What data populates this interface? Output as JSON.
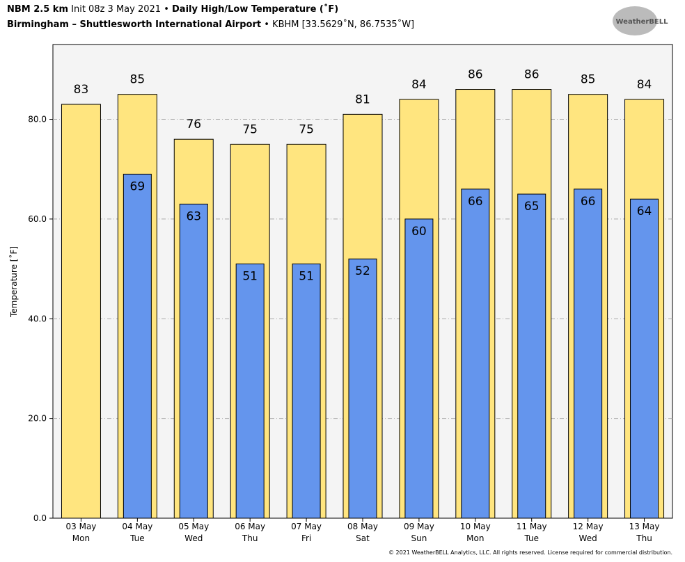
{
  "chart_data": {
    "type": "bar",
    "title": {
      "model": "NBM 2.5 km",
      "init": "Init 08z 3 May 2021",
      "separator": "•",
      "name": "Daily High/Low Temperature (˚F)"
    },
    "subtitle": {
      "station": "Birmingham – Shuttlesworth International Airport",
      "code": "KBHM [33.5629˚N, 86.7535˚W]"
    },
    "logo": "WeatherBELL",
    "copyright": "© 2021 WeatherBELL Analytics, LLC. All rights reserved. License required for commercial distribution.",
    "y_label": "Temperature [˚F]",
    "categories": [
      [
        "03 May",
        "Mon"
      ],
      [
        "04 May",
        "Tue"
      ],
      [
        "05 May",
        "Wed"
      ],
      [
        "06 May",
        "Thu"
      ],
      [
        "07 May",
        "Fri"
      ],
      [
        "08 May",
        "Sat"
      ],
      [
        "09 May",
        "Sun"
      ],
      [
        "10 May",
        "Mon"
      ],
      [
        "11 May",
        "Tue"
      ],
      [
        "12 May",
        "Wed"
      ],
      [
        "13 May",
        "Thu"
      ]
    ],
    "series": [
      {
        "name": "High",
        "color": "#ffe57f",
        "values": [
          83,
          85,
          76,
          75,
          75,
          81,
          84,
          86,
          86,
          85,
          84
        ]
      },
      {
        "name": "Low",
        "color": "#6495ed",
        "values": [
          null,
          69,
          63,
          51,
          51,
          52,
          60,
          66,
          65,
          66,
          64
        ]
      }
    ],
    "ylim": [
      0,
      95
    ],
    "yticks": [
      {
        "value": 0,
        "label": "0.0"
      },
      {
        "value": 20,
        "label": "20.0"
      },
      {
        "value": 40,
        "label": "40.0"
      },
      {
        "value": 60,
        "label": "60.0"
      },
      {
        "value": 80,
        "label": "80.0"
      }
    ],
    "grid": true
  }
}
